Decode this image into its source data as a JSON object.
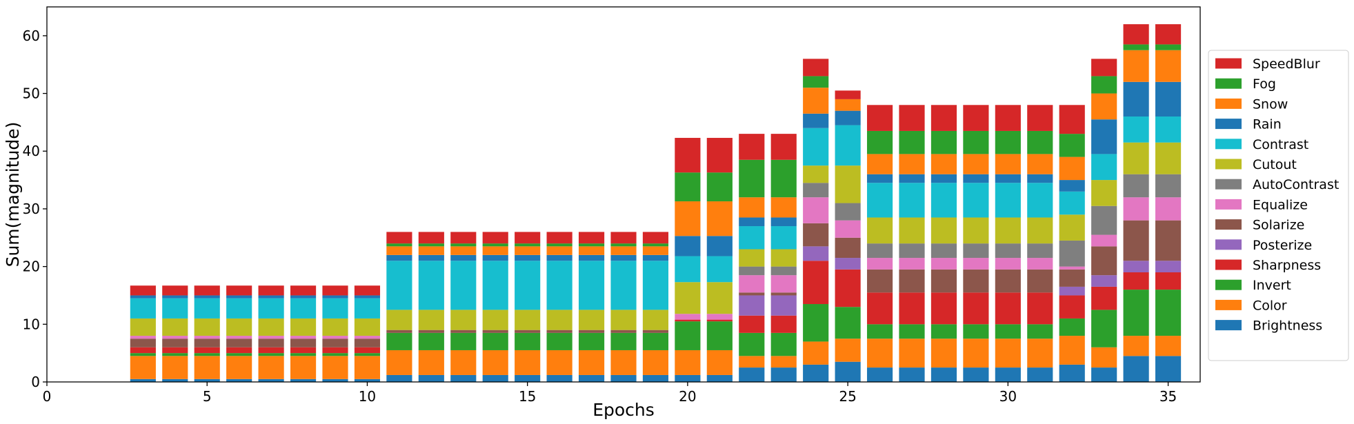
{
  "chart_data": {
    "type": "bar",
    "stacked": true,
    "xlabel": "Epochs",
    "ylabel": "Sum(magnitude)",
    "xlim": [
      0,
      36
    ],
    "ylim": [
      0,
      65
    ],
    "xticks": [
      0,
      5,
      10,
      15,
      20,
      25,
      30,
      35
    ],
    "yticks": [
      0,
      10,
      20,
      30,
      40,
      50,
      60
    ],
    "legend_position": "right",
    "x": [
      3,
      4,
      5,
      6,
      7,
      8,
      9,
      10,
      11,
      12,
      13,
      14,
      15,
      16,
      17,
      18,
      19,
      20,
      21,
      22,
      23,
      24,
      25,
      26,
      27,
      28,
      29,
      30,
      31,
      32,
      33,
      34,
      35
    ],
    "series": [
      {
        "name": "Brightness",
        "color": "#1f77b4",
        "values": [
          0.5,
          0.5,
          0.5,
          0.5,
          0.5,
          0.5,
          0.5,
          0.5,
          1.2,
          1.2,
          1.2,
          1.2,
          1.2,
          1.2,
          1.2,
          1.2,
          1.2,
          1.2,
          1.2,
          2.5,
          2.5,
          3,
          3.5,
          2.5,
          2.5,
          2.5,
          2.5,
          2.5,
          2.5,
          3,
          2.5,
          4.5,
          4.5
        ]
      },
      {
        "name": "Color",
        "color": "#ff7f0e",
        "values": [
          4,
          4,
          4,
          4,
          4,
          4,
          4,
          4,
          4.3,
          4.3,
          4.3,
          4.3,
          4.3,
          4.3,
          4.3,
          4.3,
          4.3,
          4.3,
          4.3,
          2,
          2,
          4,
          4,
          5,
          5,
          5,
          5,
          5,
          5,
          5,
          3.5,
          3.5,
          3.5
        ]
      },
      {
        "name": "Invert",
        "color": "#2ca02c",
        "values": [
          0.5,
          0.5,
          0.5,
          0.5,
          0.5,
          0.5,
          0.5,
          0.5,
          3,
          3,
          3,
          3,
          3,
          3,
          3,
          3,
          3,
          5,
          5,
          4,
          4,
          6.5,
          5.5,
          2.5,
          2.5,
          2.5,
          2.5,
          2.5,
          2.5,
          3,
          6.5,
          8,
          8
        ]
      },
      {
        "name": "Sharpness",
        "color": "#d62728",
        "values": [
          1,
          1,
          1,
          1,
          1,
          1,
          1,
          1,
          0,
          0,
          0,
          0,
          0,
          0,
          0,
          0,
          0,
          0.3,
          0.3,
          3,
          3,
          7.5,
          6.5,
          5.5,
          5.5,
          5.5,
          5.5,
          5.5,
          5.5,
          4,
          4,
          3,
          3
        ]
      },
      {
        "name": "Posterize",
        "color": "#9467bd",
        "values": [
          0,
          0,
          0,
          0,
          0,
          0,
          0,
          0,
          0,
          0,
          0,
          0,
          0,
          0,
          0,
          0,
          0,
          0,
          0,
          3.5,
          3.5,
          2.5,
          2,
          0,
          0,
          0,
          0,
          0,
          0,
          1.5,
          2,
          2,
          2
        ]
      },
      {
        "name": "Solarize",
        "color": "#8c564b",
        "values": [
          1.5,
          1.5,
          1.5,
          1.5,
          1.5,
          1.5,
          1.5,
          1.5,
          0.5,
          0.5,
          0.5,
          0.5,
          0.5,
          0.5,
          0.5,
          0.5,
          0.5,
          0,
          0,
          0.5,
          0.5,
          4,
          3.5,
          4,
          4,
          4,
          4,
          4,
          4,
          3,
          5,
          7,
          7
        ]
      },
      {
        "name": "Equalize",
        "color": "#e377c2",
        "values": [
          0.5,
          0.5,
          0.5,
          0.5,
          0.5,
          0.5,
          0.5,
          0.5,
          0,
          0,
          0,
          0,
          0,
          0,
          0,
          0,
          0,
          1,
          1,
          3,
          3,
          4.5,
          3,
          2,
          2,
          2,
          2,
          2,
          2,
          0.5,
          2,
          4,
          4
        ]
      },
      {
        "name": "AutoContrast",
        "color": "#7f7f7f",
        "values": [
          0,
          0,
          0,
          0,
          0,
          0,
          0,
          0,
          0,
          0,
          0,
          0,
          0,
          0,
          0,
          0,
          0,
          0,
          0,
          1.5,
          1.5,
          2.5,
          3,
          2.5,
          2.5,
          2.5,
          2.5,
          2.5,
          2.5,
          4.5,
          5,
          4,
          4
        ]
      },
      {
        "name": "Cutout",
        "color": "#bcbd22",
        "values": [
          3,
          3,
          3,
          3,
          3,
          3,
          3,
          3,
          3.5,
          3.5,
          3.5,
          3.5,
          3.5,
          3.5,
          3.5,
          3.5,
          3.5,
          5.5,
          5.5,
          3,
          3,
          3,
          6.5,
          4.5,
          4.5,
          4.5,
          4.5,
          4.5,
          4.5,
          4.5,
          4.5,
          5.5,
          5.5
        ]
      },
      {
        "name": "Contrast",
        "color": "#17becf",
        "values": [
          3.5,
          3.5,
          3.5,
          3.5,
          3.5,
          3.5,
          3.5,
          3.5,
          8.5,
          8.5,
          8.5,
          8.5,
          8.5,
          8.5,
          8.5,
          8.5,
          8.5,
          4.5,
          4.5,
          4,
          4,
          6.5,
          7,
          6,
          6,
          6,
          6,
          6,
          6,
          4,
          4.5,
          4.5,
          4.5
        ]
      },
      {
        "name": "Rain",
        "color": "#1f77b4",
        "values": [
          0.5,
          0.5,
          0.5,
          0.5,
          0.5,
          0.5,
          0.5,
          0.5,
          1,
          1,
          1,
          1,
          1,
          1,
          1,
          1,
          1,
          3.5,
          3.5,
          1.5,
          1.5,
          2.5,
          2.5,
          1.5,
          1.5,
          1.5,
          1.5,
          1.5,
          1.5,
          2,
          6,
          6,
          6
        ]
      },
      {
        "name": "Snow",
        "color": "#ff7f0e",
        "values": [
          0,
          0,
          0,
          0,
          0,
          0,
          0,
          0,
          1.5,
          1.5,
          1.5,
          1.5,
          1.5,
          1.5,
          1.5,
          1.5,
          1.5,
          6,
          6,
          3.5,
          3.5,
          4.5,
          2,
          3.5,
          3.5,
          3.5,
          3.5,
          3.5,
          3.5,
          4,
          4.5,
          5.5,
          5.5
        ]
      },
      {
        "name": "Fog",
        "color": "#2ca02c",
        "values": [
          0,
          0,
          0,
          0,
          0,
          0,
          0,
          0,
          0.5,
          0.5,
          0.5,
          0.5,
          0.5,
          0.5,
          0.5,
          0.5,
          0.5,
          5,
          5,
          6.5,
          6.5,
          2,
          0,
          4,
          4,
          4,
          4,
          4,
          4,
          4,
          3,
          1,
          1
        ]
      },
      {
        "name": "SpeedBlur",
        "color": "#d62728",
        "values": [
          1.7,
          1.7,
          1.7,
          1.7,
          1.7,
          1.7,
          1.7,
          1.7,
          2,
          2,
          2,
          2,
          2,
          2,
          2,
          2,
          2,
          6,
          6,
          4.5,
          4.5,
          3,
          1.5,
          4.5,
          4.5,
          4.5,
          4.5,
          4.5,
          4.5,
          5,
          3,
          3.5,
          3.5
        ]
      }
    ]
  }
}
